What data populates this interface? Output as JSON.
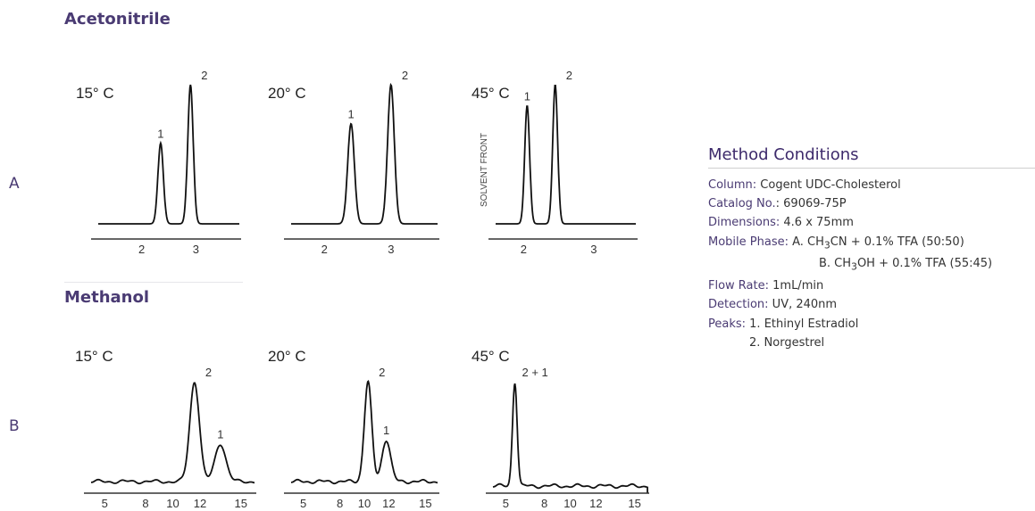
{
  "sections": {
    "top_title": "Acetonitrile",
    "bottom_title": "Methanol",
    "row_a": "A",
    "row_b": "B"
  },
  "method": {
    "heading": "Method Conditions",
    "column_label": "Column:",
    "column_value": " Cogent UDC-Cholesterol",
    "catalog_label": "Catalog No.",
    "catalog_value": ": 69069-75P",
    "dimensions_label": "Dimensions:",
    "dimensions_value": " 4.6 x 75mm",
    "mobile_label": "Mobile Phase:",
    "mobile_a_pre": " A. CH",
    "mobile_a_sub": "3",
    "mobile_a_post": "CN + 0.1% TFA (50:50)",
    "mobile_b_pre": "B. CH",
    "mobile_b_sub": "3",
    "mobile_b_post": "OH + 0.1% TFA (55:45)",
    "flow_label": "Flow Rate:",
    "flow_value": " 1mL/min",
    "detection_label": "Detection:",
    "detection_value": " UV, 240nm",
    "peaks_label": "Peaks:",
    "peak1": " 1. Ethinyl Estradiol",
    "peak2": "2. Norgestrel"
  },
  "chart_data": [
    {
      "type": "line",
      "title": "15° C",
      "x_ticks": [
        "2",
        "3"
      ],
      "xlim": [
        1.2,
        3.8
      ],
      "peaks": [
        {
          "x": 2.35,
          "height": 0.58,
          "width": 0.05,
          "label": "1"
        },
        {
          "x": 2.9,
          "height": 1.0,
          "width": 0.05,
          "label": "2"
        }
      ]
    },
    {
      "type": "line",
      "title": "20° C",
      "x_ticks": [
        "2",
        "3"
      ],
      "xlim": [
        1.5,
        3.7
      ],
      "peaks": [
        {
          "x": 2.4,
          "height": 0.72,
          "width": 0.05,
          "label": "1"
        },
        {
          "x": 3.0,
          "height": 1.0,
          "width": 0.05,
          "label": "2"
        }
      ]
    },
    {
      "type": "line",
      "title": "45° C",
      "x_ticks": [
        "2",
        "3"
      ],
      "xlim": [
        1.6,
        3.6
      ],
      "annotation": "SOLVENT FRONT",
      "peaks": [
        {
          "x": 2.05,
          "height": 0.85,
          "width": 0.035,
          "label": "1"
        },
        {
          "x": 2.45,
          "height": 1.0,
          "width": 0.035,
          "label": "2"
        }
      ]
    },
    {
      "type": "line",
      "title": "15° C",
      "x_ticks": [
        "5",
        "8",
        "10",
        "12",
        "15"
      ],
      "xlim": [
        4,
        16
      ],
      "peaks": [
        {
          "x": 11.6,
          "height": 1.0,
          "width": 0.35,
          "label": "2"
        },
        {
          "x": 13.5,
          "height": 0.38,
          "width": 0.4,
          "label": "1"
        }
      ]
    },
    {
      "type": "line",
      "title": "20° C",
      "x_ticks": [
        "5",
        "8",
        "10",
        "12",
        "15"
      ],
      "xlim": [
        4,
        16
      ],
      "peaks": [
        {
          "x": 10.3,
          "height": 1.0,
          "width": 0.3,
          "label": "2"
        },
        {
          "x": 11.8,
          "height": 0.42,
          "width": 0.35,
          "label": "1"
        }
      ]
    },
    {
      "type": "line",
      "title": "45° C",
      "x_ticks": [
        "5",
        "8",
        "10",
        "12",
        "15"
      ],
      "xlim": [
        4,
        16
      ],
      "peaks": [
        {
          "x": 5.7,
          "height": 1.0,
          "width": 0.18,
          "label": "2 + 1"
        }
      ]
    }
  ]
}
